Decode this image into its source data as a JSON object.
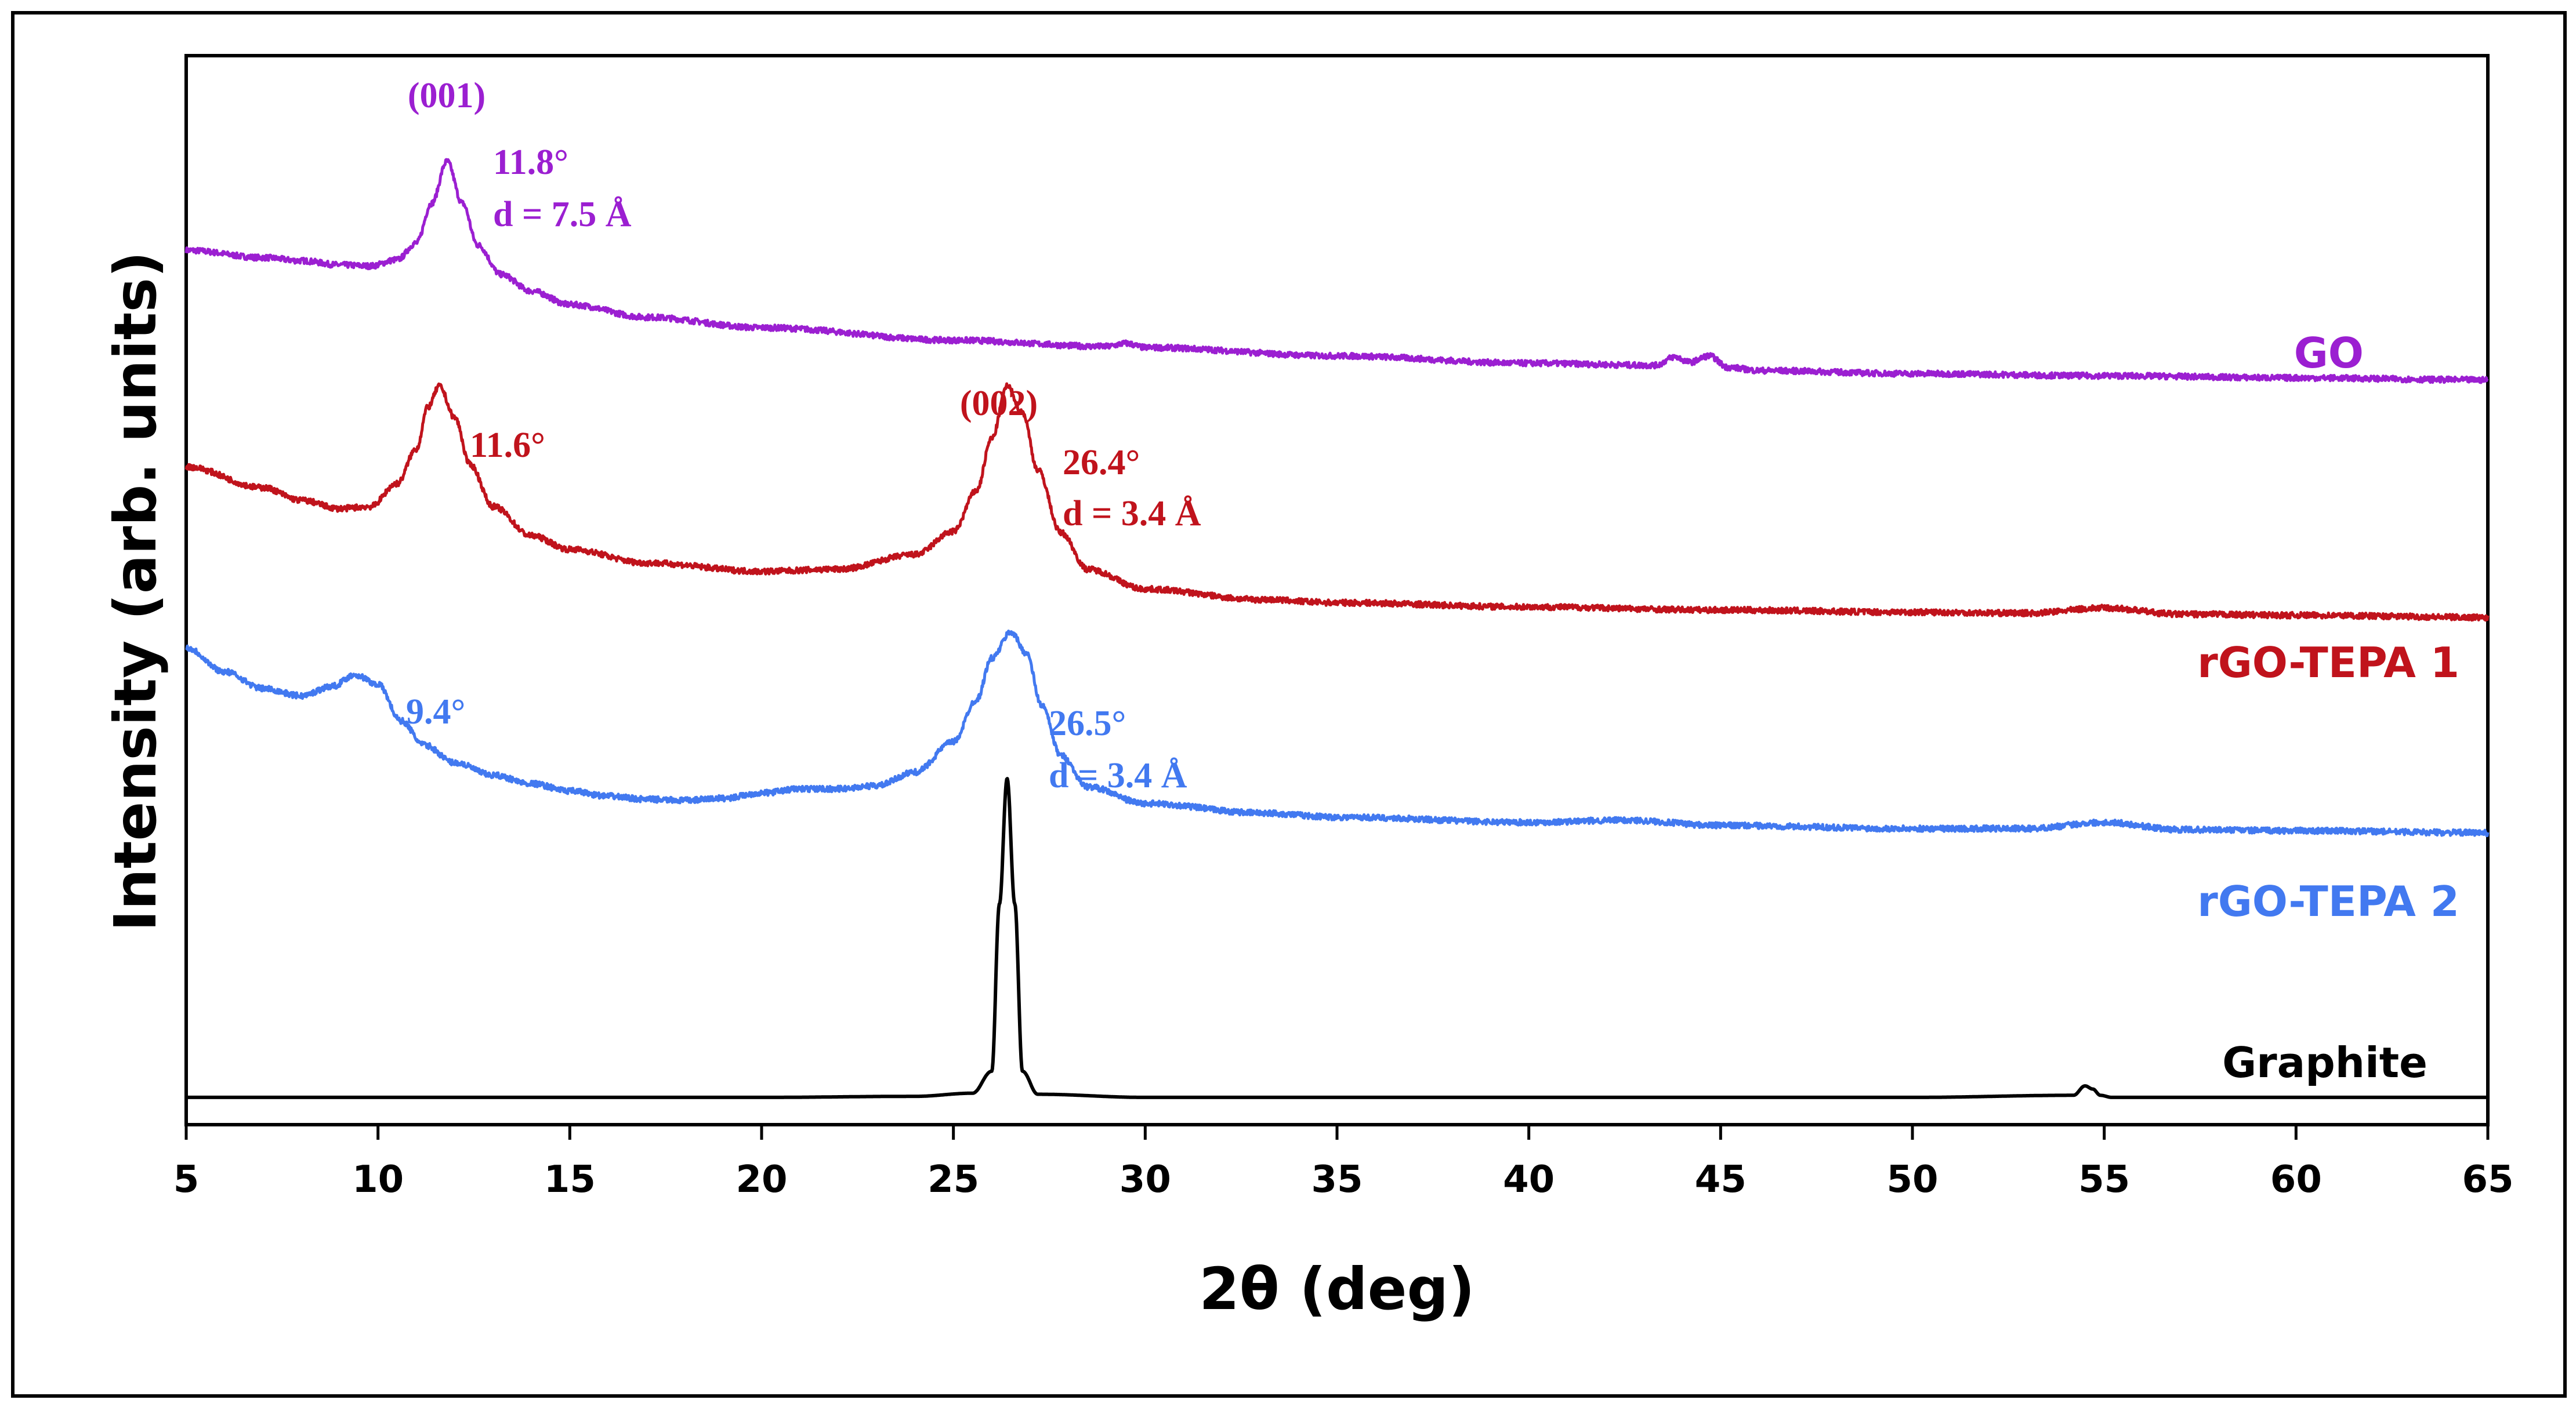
{
  "chart_data": {
    "type": "line",
    "title": "",
    "xlabel": "2θ (deg)",
    "ylabel": "Intensity (arb. units)",
    "xlim": [
      5,
      65
    ],
    "ylim": [
      0,
      100
    ],
    "xticks": [
      5,
      10,
      15,
      20,
      25,
      30,
      35,
      40,
      45,
      50,
      55,
      60,
      65
    ],
    "xtick_labels": [
      "5",
      "10",
      "15",
      "20",
      "25",
      "30",
      "35",
      "40",
      "45",
      "50",
      "55",
      "60",
      "65"
    ],
    "grid": false,
    "legend": "series labels placed inline at right end of each curve",
    "series": [
      {
        "name": "GO",
        "color": "#9b1fd1",
        "x": [
          5,
          7,
          8,
          9,
          9.8,
          10.5,
          11.0,
          11.4,
          11.8,
          12.2,
          12.6,
          13.2,
          14,
          15,
          17,
          20,
          25,
          29,
          29.5,
          30,
          35,
          40,
          43.3,
          43.8,
          44.2,
          44.7,
          45.2,
          46,
          50,
          55,
          60,
          65
        ],
        "values": [
          82.5,
          81.8,
          81.5,
          81.1,
          81.0,
          81.6,
          83.2,
          87.0,
          91.0,
          87.0,
          83.0,
          80.2,
          78.6,
          77.3,
          76.1,
          75.1,
          73.9,
          73.3,
          73.6,
          73.2,
          72.4,
          71.7,
          71.5,
          72.3,
          71.8,
          72.4,
          71.3,
          71.0,
          70.7,
          70.5,
          70.3,
          70.1
        ]
      },
      {
        "name": "rGO-TEPA 1",
        "color": "#c0131c",
        "x": [
          5,
          7,
          8,
          9,
          9.8,
          10.5,
          11.0,
          11.3,
          11.6,
          12.0,
          12.4,
          13,
          14,
          15,
          17,
          20,
          22,
          24,
          25,
          25.6,
          26.0,
          26.4,
          26.8,
          27.2,
          27.8,
          28.5,
          30,
          33,
          35,
          40,
          45,
          50,
          53,
          55,
          57,
          60,
          65
        ],
        "values": [
          61.8,
          59.8,
          58.6,
          57.8,
          58.0,
          60.2,
          63.5,
          67.5,
          69.5,
          66.5,
          62.0,
          58.0,
          55.2,
          53.9,
          52.6,
          51.8,
          52.0,
          53.4,
          55.6,
          59.5,
          64.5,
          69.5,
          67.0,
          61.5,
          55.5,
          52.0,
          50.1,
          49.1,
          48.8,
          48.4,
          48.1,
          47.9,
          47.8,
          48.3,
          47.7,
          47.6,
          47.4
        ]
      },
      {
        "name": "rGO-TEPA 2",
        "color": "#4279f0",
        "x": [
          5,
          6,
          7,
          8,
          8.8,
          9.4,
          10.0,
          10.6,
          11.2,
          12,
          13,
          14,
          15,
          16,
          17,
          18,
          19,
          20,
          21,
          22,
          23,
          24,
          25,
          25.6,
          26.0,
          26.5,
          26.9,
          27.3,
          27.8,
          28.5,
          30,
          33,
          35,
          40,
          42.5,
          45,
          50,
          53,
          55,
          57,
          60,
          65
        ],
        "values": [
          44.5,
          42.2,
          40.6,
          39.9,
          40.8,
          41.9,
          41.0,
          37.5,
          35.2,
          33.5,
          32.3,
          31.5,
          30.8,
          30.3,
          30.0,
          29.9,
          30.1,
          30.6,
          31.0,
          31.0,
          31.3,
          32.6,
          35.5,
          39.5,
          43.5,
          46.0,
          44.0,
          39.0,
          34.2,
          31.2,
          29.6,
          28.7,
          28.3,
          27.8,
          28.0,
          27.5,
          27.2,
          27.2,
          27.8,
          27.1,
          27.0,
          26.8
        ]
      },
      {
        "name": "Graphite",
        "color": "#000000",
        "x": [
          5,
          20,
          24,
          25.5,
          26.0,
          26.2,
          26.4,
          26.6,
          26.8,
          27.2,
          30,
          40,
          50,
          54.2,
          54.5,
          54.7,
          54.9,
          55.2,
          60,
          65
        ],
        "values": [
          1.5,
          1.5,
          1.6,
          1.9,
          4.0,
          20.0,
          32.0,
          20.0,
          4.0,
          1.8,
          1.5,
          1.5,
          1.5,
          1.7,
          2.6,
          2.3,
          1.7,
          1.5,
          1.5,
          1.5
        ]
      }
    ],
    "annotations": [
      {
        "text": "(001)",
        "x": 11.8,
        "y": 91,
        "color": "#9b1fd1"
      },
      {
        "text": "11.8°",
        "x": 11.8,
        "y": 91,
        "color": "#9b1fd1"
      },
      {
        "text": "d = 7.5 Å",
        "x": 11.8,
        "y": 91,
        "color": "#9b1fd1"
      },
      {
        "text": "11.6°",
        "x": 11.6,
        "y": 69.5,
        "color": "#c0131c"
      },
      {
        "text": "(002)",
        "x": 26.4,
        "y": 69.5,
        "color": "#c0131c"
      },
      {
        "text": "26.4°",
        "x": 26.4,
        "y": 69.5,
        "color": "#c0131c"
      },
      {
        "text": "d = 3.4 Å",
        "x": 26.4,
        "y": 69.5,
        "color": "#c0131c"
      },
      {
        "text": "9.4°",
        "x": 9.4,
        "y": 41.9,
        "color": "#4279f0"
      },
      {
        "text": "26.5°",
        "x": 26.5,
        "y": 46.0,
        "color": "#4279f0"
      },
      {
        "text": "d = 3.4 Å",
        "x": 26.5,
        "y": 46.0,
        "color": "#4279f0"
      }
    ]
  }
}
